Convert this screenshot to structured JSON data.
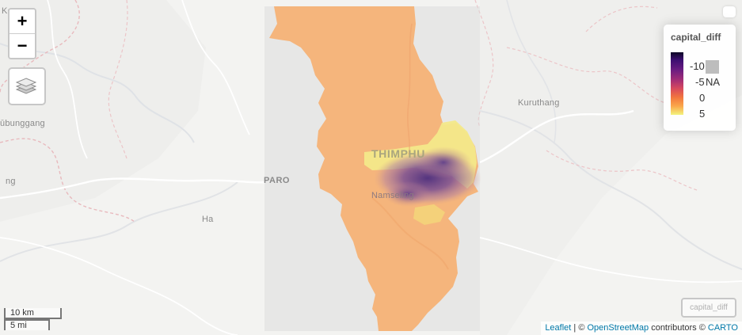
{
  "map": {
    "places": {
      "top_left": "Ko",
      "west_label": "ūbunggang",
      "west_edge": "ng",
      "west_small": "Ha",
      "paro": "PARO",
      "capital": "THIMPHU",
      "town": "Namseling",
      "east": "Kuruthang"
    }
  },
  "controls": {
    "zoom_in": "+",
    "zoom_out": "−",
    "layers_icon": "layers-icon",
    "layer_toggle_label": "capital_diff"
  },
  "legend": {
    "title": "capital_diff",
    "labels": [
      "-10",
      "-5",
      "0",
      "5"
    ],
    "na_label": "NA",
    "palette": [
      "#0b0724",
      "#3b0f70",
      "#6a1c81",
      "#a22d76",
      "#d7495d",
      "#f2763e",
      "#faa64a",
      "#f3f47d"
    ],
    "na_color": "#bdbdbd"
  },
  "scale": {
    "metric": "10 km",
    "imperial": "5 mi"
  },
  "attribution": {
    "leaflet": "Leaflet",
    "separator": " | © ",
    "osm": "OpenStreetMap",
    "middle": " contributors © ",
    "carto": "CARTO"
  },
  "colors": {
    "raster_base": "#f5b57c",
    "raster_high": "#f3e98a",
    "raster_low": "#6b4a8e",
    "extent_box": "#d9d9d9"
  }
}
